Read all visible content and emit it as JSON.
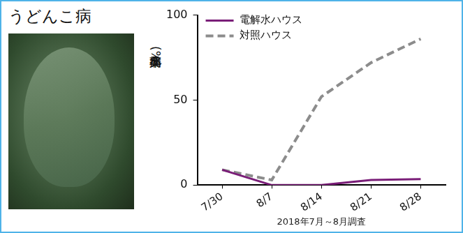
{
  "chart_data": {
    "type": "line",
    "title": "うどんこ病",
    "categories": [
      "7/30",
      "8/7",
      "8/14",
      "8/21",
      "8/28"
    ],
    "series": [
      {
        "name": "電解水ハウス",
        "color": "#7a1e78",
        "line_style": "solid",
        "values": [
          9,
          0,
          0,
          3,
          3.5
        ]
      },
      {
        "name": "対照ハウス",
        "color": "#8c8c8c",
        "line_style": "dashed",
        "values": [
          9,
          3,
          52,
          72,
          86
        ]
      }
    ],
    "y_label": "発病葉率(%)",
    "x_label": "2018年7月～8月調査",
    "ylim": [
      0,
      100
    ],
    "yticks": [
      0,
      50,
      100
    ],
    "grid": false,
    "legend": "upper left"
  }
}
